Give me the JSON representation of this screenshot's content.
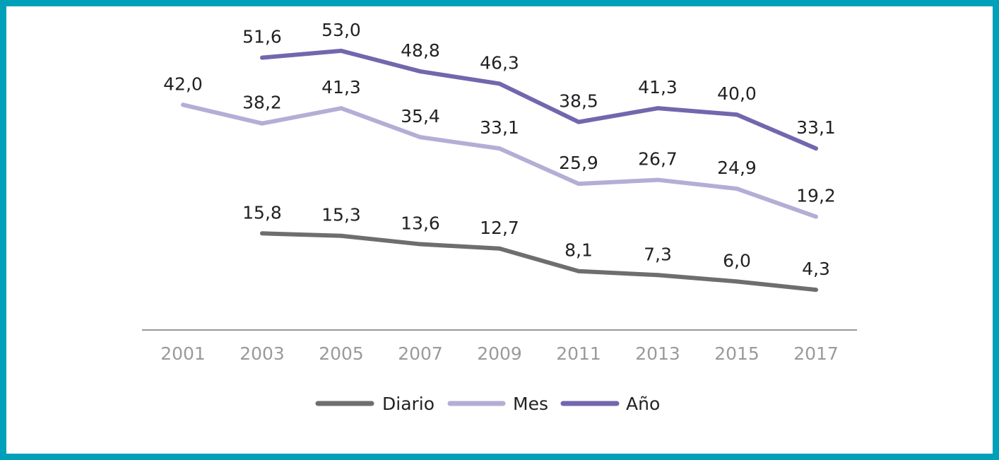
{
  "chart_data": {
    "type": "line",
    "title": "",
    "xlabel": "",
    "ylabel": "",
    "categories": [
      "2001",
      "2003",
      "2005",
      "2007",
      "2009",
      "2011",
      "2013",
      "2015",
      "2017"
    ],
    "ylim": [
      0,
      60
    ],
    "grid": false,
    "legend_position": "bottom-center",
    "series": [
      {
        "name": "Diario",
        "color": "#6e6e6e",
        "values": [
          null,
          15.8,
          15.3,
          13.6,
          12.7,
          8.1,
          7.3,
          6.0,
          4.3
        ],
        "labels": [
          null,
          "15,8",
          "15,3",
          "13,6",
          "12,7",
          "8,1",
          "7,3",
          "6,0",
          "4,3"
        ]
      },
      {
        "name": "Mes",
        "color": "#b4aed6",
        "values": [
          42.0,
          38.2,
          41.3,
          35.4,
          33.1,
          25.9,
          26.7,
          24.9,
          19.2
        ],
        "labels": [
          "42,0",
          "38,2",
          "41,3",
          "35,4",
          "33,1",
          "25,9",
          "26,7",
          "24,9",
          "19,2"
        ]
      },
      {
        "name": "Año",
        "color": "#7466ad",
        "values": [
          null,
          51.6,
          53.0,
          48.8,
          46.3,
          38.5,
          41.3,
          40.0,
          33.1
        ],
        "labels": [
          null,
          "51,6",
          "53,0",
          "48,8",
          "46,3",
          "38,5",
          "41,3",
          "40,0",
          "33,1"
        ]
      }
    ]
  }
}
